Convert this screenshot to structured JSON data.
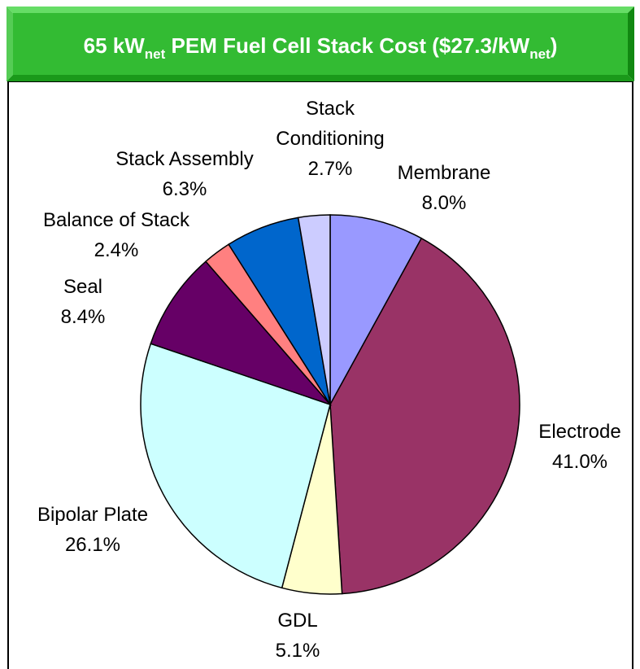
{
  "chart_data": {
    "type": "pie",
    "title": [
      "65 kW",
      "net",
      " PEM Fuel Cell Stack Cost ($27.3/kW",
      "net",
      ")"
    ],
    "categories": [
      "Membrane",
      "Electrode",
      "GDL",
      "Bipolar Plate",
      "Seal",
      "Balance of Stack",
      "Stack Assembly",
      "Stack Conditioning"
    ],
    "values": [
      8.0,
      41.0,
      5.1,
      26.1,
      8.4,
      2.4,
      6.3,
      2.7
    ],
    "value_labels": [
      "8.0%",
      "41.0%",
      "5.1%",
      "26.1%",
      "8.4%",
      "2.4%",
      "6.3%",
      "2.7%"
    ],
    "colors": [
      "#9999ff",
      "#993366",
      "#ffffcc",
      "#ccffff",
      "#660066",
      "#ff8080",
      "#0066cc",
      "#ccccff"
    ]
  }
}
